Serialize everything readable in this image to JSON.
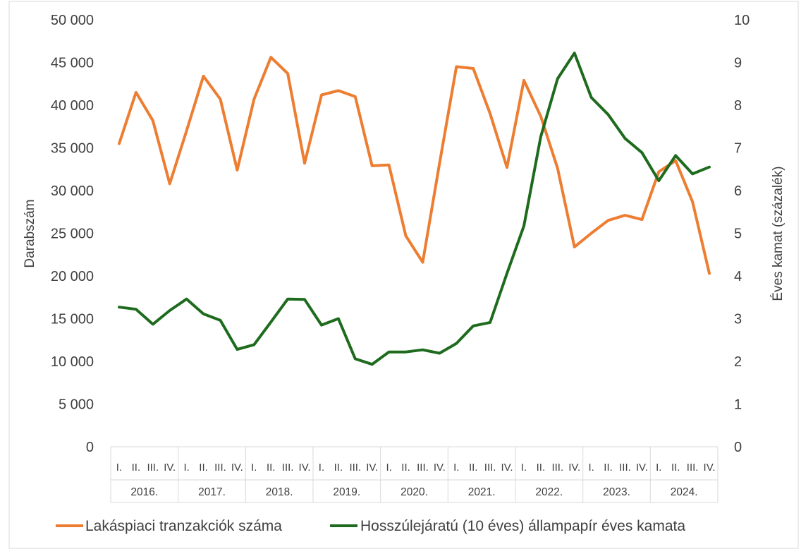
{
  "chart_data": {
    "type": "line",
    "quarters": [
      "I.",
      "II.",
      "III.",
      "IV."
    ],
    "years": [
      "2016.",
      "2017.",
      "2018.",
      "2019.",
      "2020.",
      "2021.",
      "2022.",
      "2023.",
      "2024."
    ],
    "y_left": {
      "label": "Darabszám",
      "min": 0,
      "max": 50000,
      "step": 5000,
      "tick_labels": [
        "0",
        "5 000",
        "10 000",
        "15 000",
        "20 000",
        "25 000",
        "30 000",
        "35 000",
        "40 000",
        "45 000",
        "50 000"
      ]
    },
    "y_right": {
      "label": "Éves kamat (százalék)",
      "min": 0,
      "max": 10,
      "step": 1,
      "tick_labels": [
        "0",
        "1",
        "2",
        "3",
        "4",
        "5",
        "6",
        "7",
        "8",
        "9",
        "10"
      ]
    },
    "grid": false,
    "legend_position": "bottom",
    "series": [
      {
        "name": "Lakáspiaci tranzakciók száma",
        "axis": "left",
        "color": "#ED7D31",
        "values": [
          35500,
          41500,
          38200,
          30800,
          37000,
          43400,
          40700,
          32400,
          40700,
          45600,
          43700,
          33200,
          41200,
          41700,
          41000,
          32900,
          33000,
          24700,
          21600,
          33200,
          44500,
          44300,
          39000,
          32700,
          42900,
          38700,
          32600,
          23400,
          25000,
          26500,
          27100,
          26600,
          32200,
          33500,
          28700,
          20300
        ]
      },
      {
        "name": "Hosszúlejáratú (10 éves) állampapír éves kamata",
        "axis": "right",
        "color": "#1E6B1E",
        "values": [
          3.27,
          3.22,
          2.87,
          3.19,
          3.46,
          3.11,
          2.96,
          2.28,
          2.39,
          2.92,
          3.46,
          3.45,
          2.85,
          3.0,
          2.06,
          1.93,
          2.22,
          2.22,
          2.27,
          2.19,
          2.42,
          2.83,
          2.91,
          4.06,
          5.17,
          7.26,
          8.62,
          9.22,
          8.18,
          7.78,
          7.22,
          6.89,
          6.23,
          6.82,
          6.39,
          6.55
        ]
      }
    ]
  }
}
